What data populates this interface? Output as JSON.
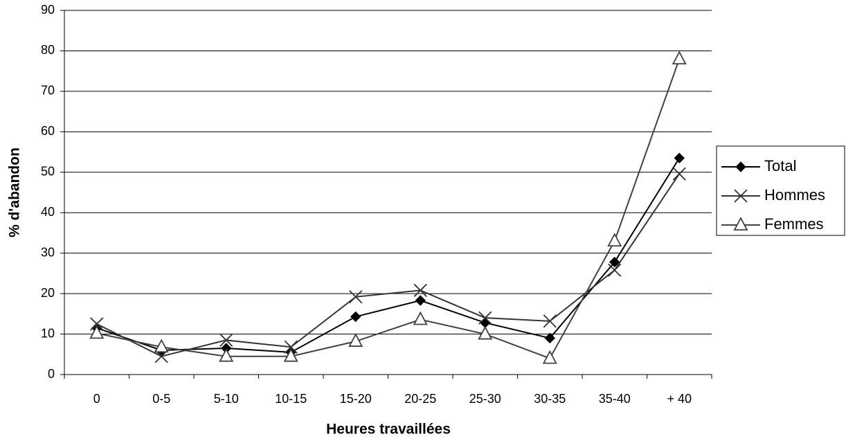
{
  "chart_data": {
    "type": "line",
    "x_label": "Heures travaillées",
    "y_label": "% d'abandon",
    "categories": [
      "0",
      "0-5",
      "5-10",
      "10-15",
      "15-20",
      "20-25",
      "25-30",
      "30-35",
      "35-40",
      "+ 40"
    ],
    "series": [
      {
        "name": "Total",
        "color": "#000000",
        "marker": "diamond",
        "values": [
          11.5,
          6,
          6.5,
          5.5,
          14.3,
          18.3,
          12.8,
          9,
          27.8,
          53.5
        ]
      },
      {
        "name": "Hommes",
        "color": "#333333",
        "marker": "x",
        "values": [
          12.5,
          4.5,
          8.5,
          6.8,
          19.2,
          20.8,
          14,
          13.2,
          25.8,
          49.6
        ]
      },
      {
        "name": "Femmes",
        "color": "#404040",
        "marker": "triangle",
        "values": [
          10.2,
          6.8,
          4.5,
          4.5,
          8.2,
          13.6,
          10,
          4,
          33,
          78
        ]
      }
    ],
    "ylim": [
      0,
      90
    ],
    "yticks": [
      0,
      10,
      20,
      30,
      40,
      50,
      60,
      70,
      80,
      90
    ],
    "grid": true,
    "legend": "right"
  }
}
